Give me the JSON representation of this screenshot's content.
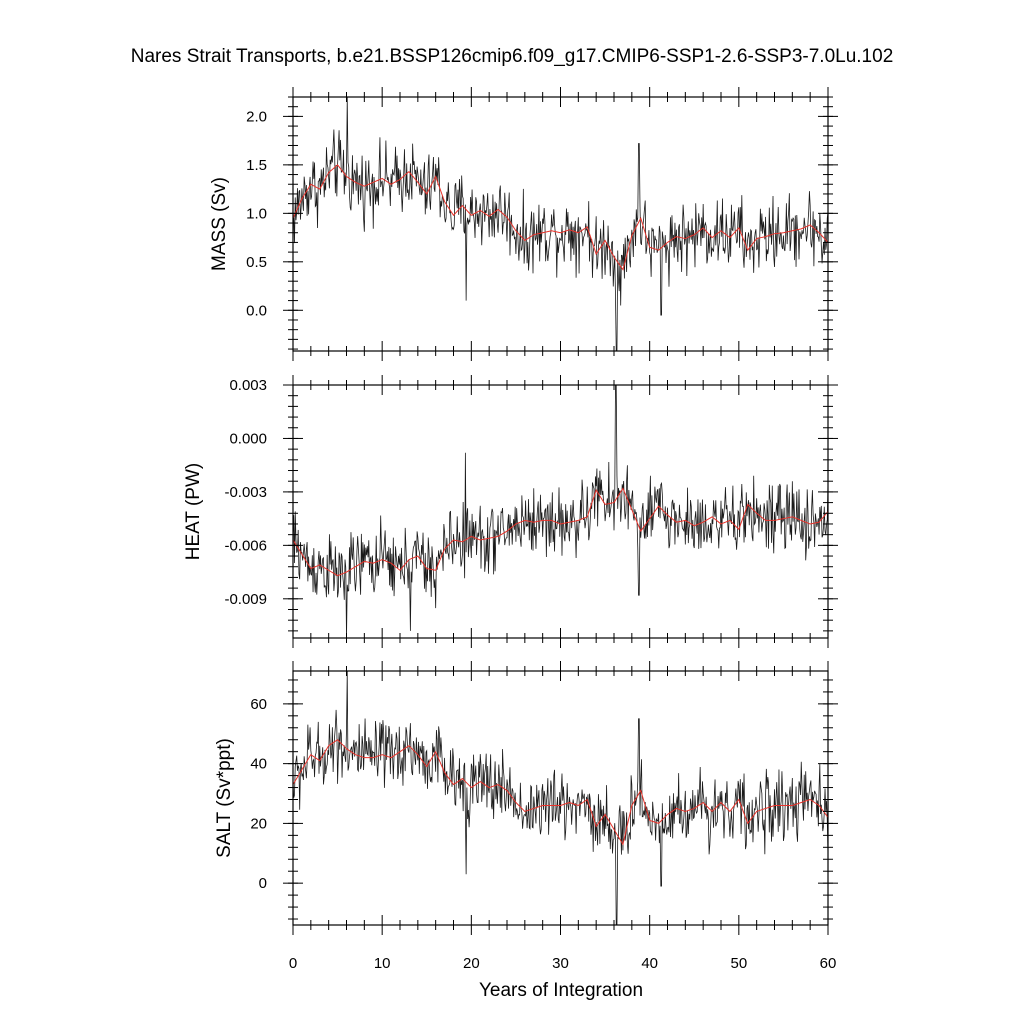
{
  "title": "Nares Strait Transports, b.e21.BSSP126cmip6.f09_g17.CMIP6-SSP1-2.6-SSP3-7.0Lu.102",
  "xlabel": "Years of Integration",
  "colors": {
    "raw": "#1a1a1a",
    "smooth": "#e8322a",
    "frame": "#000000"
  },
  "chart_data": [
    {
      "type": "line",
      "name": "mass",
      "ylabel": "MASS (Sv)",
      "xlim": [
        0,
        60
      ],
      "ylim": [
        -0.42,
        2.2
      ],
      "yticks": [
        0.0,
        0.5,
        1.0,
        1.5,
        2.0
      ],
      "yticklabels": [
        "0.0",
        "0.5",
        "1.0",
        "1.5",
        "2.0"
      ],
      "yminor": 0.1,
      "xticks": [
        0,
        10,
        20,
        30,
        40,
        50,
        60
      ],
      "xticklabels": [
        "0",
        "10",
        "20",
        "30",
        "40",
        "50",
        "60"
      ],
      "smooth_series": [
        [
          0,
          0.95
        ],
        [
          1,
          1.15
        ],
        [
          2,
          1.3
        ],
        [
          3,
          1.25
        ],
        [
          4,
          1.42
        ],
        [
          5,
          1.5
        ],
        [
          6,
          1.38
        ],
        [
          7,
          1.32
        ],
        [
          8,
          1.28
        ],
        [
          9,
          1.32
        ],
        [
          10,
          1.36
        ],
        [
          11,
          1.3
        ],
        [
          12,
          1.35
        ],
        [
          13,
          1.43
        ],
        [
          14,
          1.32
        ],
        [
          15,
          1.2
        ],
        [
          16,
          1.38
        ],
        [
          17,
          1.12
        ],
        [
          18,
          0.98
        ],
        [
          19,
          1.08
        ],
        [
          20,
          0.98
        ],
        [
          21,
          1.03
        ],
        [
          22,
          0.97
        ],
        [
          23,
          1.04
        ],
        [
          24,
          0.96
        ],
        [
          25,
          0.82
        ],
        [
          26,
          0.72
        ],
        [
          27,
          0.78
        ],
        [
          28,
          0.8
        ],
        [
          29,
          0.82
        ],
        [
          30,
          0.8
        ],
        [
          31,
          0.83
        ],
        [
          32,
          0.8
        ],
        [
          33,
          0.86
        ],
        [
          34,
          0.58
        ],
        [
          35,
          0.72
        ],
        [
          36,
          0.55
        ],
        [
          37,
          0.42
        ],
        [
          38,
          0.77
        ],
        [
          39,
          0.95
        ],
        [
          40,
          0.65
        ],
        [
          41,
          0.62
        ],
        [
          42,
          0.7
        ],
        [
          43,
          0.76
        ],
        [
          44,
          0.74
        ],
        [
          45,
          0.78
        ],
        [
          46,
          0.85
        ],
        [
          47,
          0.75
        ],
        [
          48,
          0.82
        ],
        [
          49,
          0.75
        ],
        [
          50,
          0.85
        ],
        [
          51,
          0.62
        ],
        [
          52,
          0.74
        ],
        [
          53,
          0.76
        ],
        [
          54,
          0.79
        ],
        [
          55,
          0.8
        ],
        [
          56,
          0.82
        ],
        [
          57,
          0.84
        ],
        [
          58,
          0.88
        ],
        [
          59,
          0.8
        ],
        [
          60,
          0.7
        ]
      ],
      "spikes": [
        [
          6.1,
          2.2
        ],
        [
          36.3,
          -0.42
        ],
        [
          38.8,
          1.72
        ],
        [
          19.4,
          0.1
        ],
        [
          41.3,
          -0.05
        ]
      ]
    },
    {
      "type": "line",
      "name": "heat",
      "ylabel": "HEAT (PW)",
      "xlim": [
        0,
        60
      ],
      "ylim": [
        -0.0112,
        0.003
      ],
      "yticks": [
        -0.009,
        -0.006,
        -0.003,
        0.0,
        0.003
      ],
      "yticklabels": [
        "-0.009",
        "-0.006",
        "-0.003",
        "0.000",
        "0.003"
      ],
      "yminor": 0.0006,
      "xticks": [
        0,
        10,
        20,
        30,
        40,
        50,
        60
      ],
      "xticklabels": [
        "0",
        "10",
        "20",
        "30",
        "40",
        "50",
        "60"
      ],
      "smooth_series": [
        [
          0,
          -0.0057
        ],
        [
          1,
          -0.0065
        ],
        [
          2,
          -0.0073
        ],
        [
          3,
          -0.0071
        ],
        [
          4,
          -0.0074
        ],
        [
          5,
          -0.0077
        ],
        [
          6,
          -0.0075
        ],
        [
          7,
          -0.0072
        ],
        [
          8,
          -0.0069
        ],
        [
          9,
          -0.007
        ],
        [
          10,
          -0.0068
        ],
        [
          11,
          -0.007
        ],
        [
          12,
          -0.0074
        ],
        [
          13,
          -0.0068
        ],
        [
          14,
          -0.0066
        ],
        [
          15,
          -0.0073
        ],
        [
          16,
          -0.0074
        ],
        [
          17,
          -0.0062
        ],
        [
          18,
          -0.0057
        ],
        [
          19,
          -0.0058
        ],
        [
          20,
          -0.0055
        ],
        [
          21,
          -0.0057
        ],
        [
          22,
          -0.0056
        ],
        [
          23,
          -0.0055
        ],
        [
          24,
          -0.0052
        ],
        [
          25,
          -0.0048
        ],
        [
          26,
          -0.0046
        ],
        [
          27,
          -0.0047
        ],
        [
          28,
          -0.0046
        ],
        [
          29,
          -0.0046
        ],
        [
          30,
          -0.0048
        ],
        [
          31,
          -0.0047
        ],
        [
          32,
          -0.0046
        ],
        [
          33,
          -0.0044
        ],
        [
          34,
          -0.0029
        ],
        [
          35,
          -0.0037
        ],
        [
          36,
          -0.0036
        ],
        [
          37,
          -0.0028
        ],
        [
          38,
          -0.004
        ],
        [
          39,
          -0.0052
        ],
        [
          40,
          -0.0045
        ],
        [
          41,
          -0.0038
        ],
        [
          42,
          -0.0043
        ],
        [
          43,
          -0.0047
        ],
        [
          44,
          -0.0046
        ],
        [
          45,
          -0.0049
        ],
        [
          46,
          -0.0047
        ],
        [
          47,
          -0.0044
        ],
        [
          48,
          -0.0048
        ],
        [
          49,
          -0.0046
        ],
        [
          50,
          -0.0051
        ],
        [
          51,
          -0.0037
        ],
        [
          52,
          -0.0042
        ],
        [
          53,
          -0.0046
        ],
        [
          54,
          -0.0046
        ],
        [
          55,
          -0.0045
        ],
        [
          56,
          -0.0044
        ],
        [
          57,
          -0.0046
        ],
        [
          58,
          -0.0048
        ],
        [
          59,
          -0.0047
        ],
        [
          60,
          -0.0041
        ]
      ],
      "spikes": [
        [
          36.2,
          0.003
        ],
        [
          6.0,
          -0.0112
        ],
        [
          19.3,
          -0.0008
        ],
        [
          38.8,
          -0.0088
        ],
        [
          13.2,
          -0.0108
        ]
      ]
    },
    {
      "type": "line",
      "name": "salt",
      "ylabel": "SALT (Sv*ppt)",
      "xlim": [
        0,
        60
      ],
      "ylim": [
        -14,
        71
      ],
      "yticks": [
        0,
        20,
        40,
        60
      ],
      "yticklabels": [
        "0",
        "20",
        "40",
        "60"
      ],
      "yminor": 4,
      "xticks": [
        0,
        10,
        20,
        30,
        40,
        50,
        60
      ],
      "xticklabels": [
        "0",
        "10",
        "20",
        "30",
        "40",
        "50",
        "60"
      ],
      "smooth_series": [
        [
          0,
          33
        ],
        [
          1,
          38
        ],
        [
          2,
          43
        ],
        [
          3,
          41
        ],
        [
          4,
          46
        ],
        [
          5,
          48
        ],
        [
          6,
          45
        ],
        [
          7,
          43
        ],
        [
          8,
          42
        ],
        [
          9,
          42
        ],
        [
          10,
          43
        ],
        [
          11,
          42
        ],
        [
          12,
          44
        ],
        [
          13,
          46
        ],
        [
          14,
          43
        ],
        [
          15,
          39
        ],
        [
          16,
          44
        ],
        [
          17,
          37
        ],
        [
          18,
          33
        ],
        [
          19,
          35
        ],
        [
          20,
          32
        ],
        [
          21,
          34
        ],
        [
          22,
          32
        ],
        [
          23,
          33
        ],
        [
          24,
          31
        ],
        [
          25,
          27
        ],
        [
          26,
          24
        ],
        [
          27,
          25
        ],
        [
          28,
          26
        ],
        [
          29,
          26
        ],
        [
          30,
          26
        ],
        [
          31,
          27
        ],
        [
          32,
          26
        ],
        [
          33,
          28
        ],
        [
          34,
          19
        ],
        [
          35,
          23
        ],
        [
          36,
          18
        ],
        [
          37,
          13
        ],
        [
          38,
          26
        ],
        [
          39,
          31
        ],
        [
          40,
          21
        ],
        [
          41,
          20
        ],
        [
          42,
          23
        ],
        [
          43,
          25
        ],
        [
          44,
          24
        ],
        [
          45,
          25
        ],
        [
          46,
          27
        ],
        [
          47,
          24
        ],
        [
          48,
          27
        ],
        [
          49,
          24
        ],
        [
          50,
          28
        ],
        [
          51,
          20
        ],
        [
          52,
          24
        ],
        [
          53,
          25
        ],
        [
          54,
          26
        ],
        [
          55,
          26
        ],
        [
          56,
          26
        ],
        [
          57,
          27
        ],
        [
          58,
          28
        ],
        [
          59,
          26
        ],
        [
          60,
          22
        ]
      ],
      "spikes": [
        [
          6.1,
          71
        ],
        [
          36.3,
          -14
        ],
        [
          38.8,
          55
        ],
        [
          19.4,
          3
        ],
        [
          41.3,
          -1
        ]
      ]
    }
  ]
}
